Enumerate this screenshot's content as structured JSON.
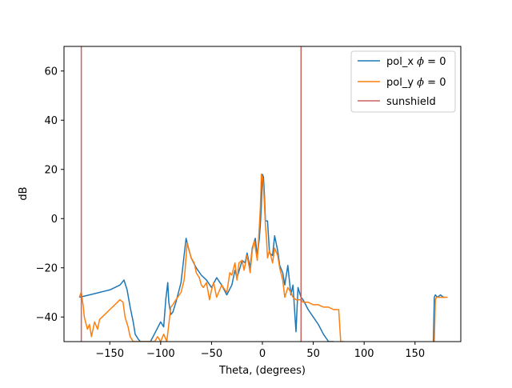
{
  "chart_data": {
    "type": "line",
    "title": "",
    "xlabel": "Theta, (degrees)",
    "ylabel": "dB",
    "xlim": [
      -195,
      195
    ],
    "ylim": [
      -50,
      70
    ],
    "xticks": [
      -150,
      -100,
      -50,
      0,
      50,
      100,
      150
    ],
    "yticks": [
      -40,
      -20,
      0,
      20,
      40,
      60
    ],
    "xtick_labels": [
      "−150",
      "−100",
      "−50",
      "0",
      "50",
      "100",
      "150"
    ],
    "ytick_labels": [
      "−40",
      "−20",
      "0",
      "20",
      "40",
      "60"
    ],
    "grid": false,
    "legend_position": "top-right",
    "series": [
      {
        "name": "pol_x",
        "name_suffix": " = 0",
        "color": "#1f77b4",
        "x": [
          -180,
          -170,
          -160,
          -150,
          -140,
          -136,
          -133,
          -130,
          -127,
          -125,
          -122,
          -120,
          -115,
          -110,
          -105,
          -100,
          -97,
          -95,
          -93,
          -92,
          -90,
          -88,
          -85,
          -80,
          -77,
          -75,
          -72,
          -70,
          -65,
          -60,
          -55,
          -50,
          -45,
          -40,
          -35,
          -30,
          -27,
          -25,
          -22,
          -20,
          -17,
          -15,
          -12,
          -10,
          -7,
          -5,
          -3,
          -2,
          -1,
          0,
          1,
          2,
          3,
          5,
          7,
          10,
          12,
          15,
          17,
          20,
          22,
          25,
          28,
          30,
          33,
          35,
          38,
          40,
          45,
          50,
          55,
          60,
          65,
          70
        ],
        "y": [
          -32,
          -31,
          -30,
          -29,
          -27,
          -25,
          -29,
          -36,
          -42,
          -47,
          -49,
          -50,
          -50,
          -50,
          -46,
          -42,
          -44,
          -33,
          -26,
          -34,
          -39,
          -38,
          -34,
          -26,
          -15,
          -8,
          -13,
          -16,
          -20,
          -23,
          -25,
          -28,
          -24,
          -27,
          -31,
          -27,
          -21,
          -24,
          -20,
          -17,
          -18,
          -14,
          -20,
          -12,
          -8,
          -15,
          -8,
          -2,
          5,
          18,
          17,
          10,
          -1,
          -1,
          -14,
          -15,
          -7,
          -13,
          -19,
          -22,
          -27,
          -19,
          -31,
          -27,
          -46,
          -28,
          -32,
          -33,
          -37,
          -40,
          -43,
          -47,
          -50,
          -50
        ]
      },
      {
        "name": "pol_y",
        "name_suffix": " = 0",
        "color": "#ff7f0e",
        "x": [
          -180,
          -178,
          -176,
          -175,
          -172,
          -170,
          -168,
          -165,
          -162,
          -160,
          -155,
          -150,
          -145,
          -140,
          -137,
          -135,
          -132,
          -130,
          -127,
          -125,
          -123,
          -120,
          -118,
          -115,
          -110,
          -106,
          -103,
          -100,
          -97,
          -94,
          -92,
          -90,
          -88,
          -85,
          -80,
          -77,
          -76,
          -74,
          -72,
          -70,
          -67,
          -65,
          -62,
          -60,
          -58,
          -55,
          -52,
          -50,
          -48,
          -45,
          -40,
          -35,
          -32,
          -30,
          -27,
          -25,
          -23,
          -20,
          -18,
          -15,
          -12,
          -10,
          -8,
          -5,
          -3,
          -2,
          -1,
          0,
          1,
          2,
          3,
          4,
          5,
          7,
          10,
          12,
          15,
          17,
          20,
          22,
          25,
          28,
          30,
          33,
          35,
          38,
          40,
          45,
          50,
          55,
          60,
          65,
          70,
          75,
          77,
          80
        ],
        "y": [
          -32,
          -30,
          -36,
          -40,
          -45,
          -43,
          -48,
          -42,
          -45,
          -41,
          -39,
          -37,
          -35,
          -33,
          -34,
          -40,
          -44,
          -48,
          -50,
          -50,
          -50,
          -50,
          -50,
          -50,
          -50,
          -50,
          -48,
          -50,
          -47,
          -50,
          -43,
          -36,
          -35,
          -33,
          -30,
          -25,
          -21,
          -10,
          -13,
          -16,
          -18,
          -22,
          -24,
          -27,
          -28,
          -26,
          -33,
          -29,
          -26,
          -32,
          -27,
          -30,
          -22,
          -23,
          -18,
          -25,
          -18,
          -17,
          -21,
          -15,
          -22,
          -13,
          -9,
          -17,
          -3,
          5,
          18,
          17,
          13,
          6,
          -3,
          -8,
          -16,
          -13,
          -18,
          -12,
          -15,
          -20,
          -25,
          -32,
          -28,
          -30,
          -32,
          -33,
          -33,
          -33,
          -34,
          -34,
          -35,
          -35,
          -36,
          -36,
          -37,
          -37,
          -50,
          -50
        ]
      },
      {
        "name": "",
        "color": "#1f77b4",
        "x": [
          168,
          169,
          170,
          172,
          175,
          178,
          180
        ],
        "y": [
          -50,
          -32,
          -31,
          -32,
          -31,
          -32,
          -32
        ]
      },
      {
        "name": "",
        "color": "#ff7f0e",
        "x": [
          169,
          170,
          171,
          174,
          177,
          180,
          182
        ],
        "y": [
          -50,
          -33,
          -32,
          -32,
          -32,
          -32,
          -32
        ]
      }
    ],
    "vlines": {
      "name": "sunshield",
      "color": "#c8625f",
      "x": [
        -178,
        38
      ]
    },
    "legend": [
      {
        "label": "pol_x ",
        "phi": "ϕ",
        "suffix": " = 0",
        "color": "#1f77b4"
      },
      {
        "label": "pol_y ",
        "phi": "ϕ",
        "suffix": " = 0",
        "color": "#ff7f0e"
      },
      {
        "label": "sunshield",
        "phi": "",
        "suffix": "",
        "color": "#c8625f"
      }
    ]
  }
}
